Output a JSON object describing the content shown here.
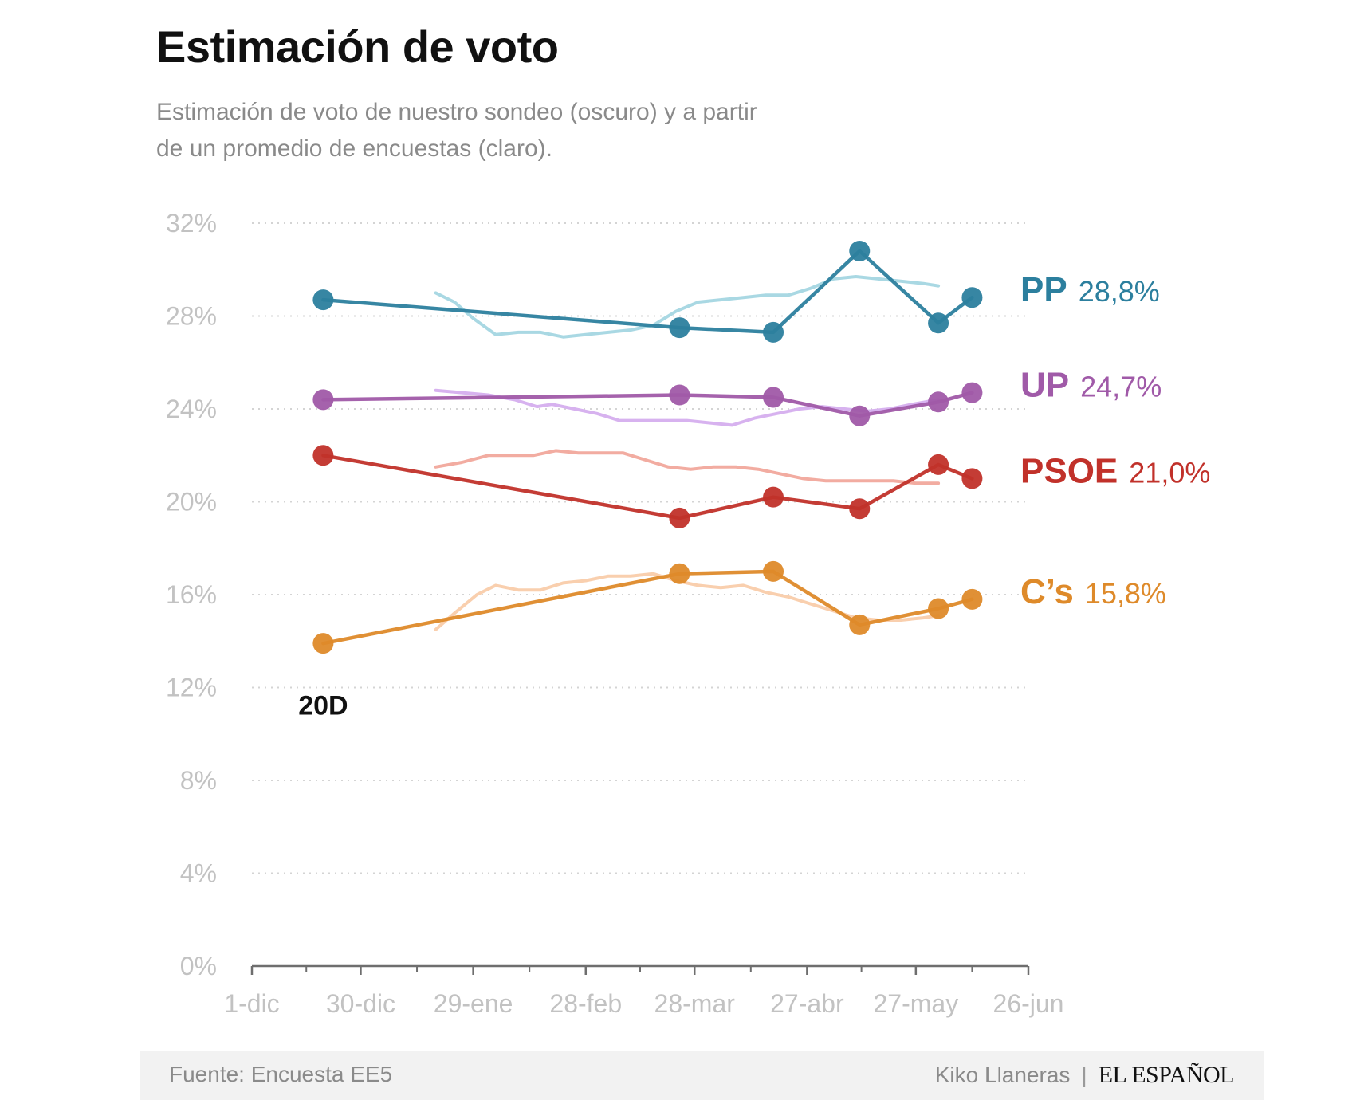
{
  "title": "Estimación de voto",
  "subtitle": "Estimación de voto de nuestro sondeo (oscuro) y a partir de un promedio de encuestas (claro).",
  "footer": {
    "source": "Fuente: Encuesta EE5",
    "author": "Kiko Llaneras",
    "separator": "|",
    "brand": "EL ESPAÑOL"
  },
  "chart_data": {
    "type": "line",
    "y_ticks": [
      "0%",
      "4%",
      "8%",
      "12%",
      "16%",
      "20%",
      "24%",
      "28%",
      "32%"
    ],
    "x_ticks": [
      "1-dic",
      "30-dic",
      "29-ene",
      "28-feb",
      "28-mar",
      "27-abr",
      "27-may",
      "26-jun"
    ],
    "x_tick_days": [
      0,
      29,
      59,
      89,
      118,
      148,
      177,
      207
    ],
    "ylim": [
      0,
      32
    ],
    "xlim_days": [
      0,
      207
    ],
    "grid": true,
    "annotation": {
      "text": "20D",
      "x_day": 19,
      "y": 11.1
    },
    "series": [
      {
        "name": "PP",
        "label_value": "28,8%",
        "color": "#2c7f9e",
        "light_color": "#a9d8e3",
        "survey": [
          [
            19,
            28.7
          ],
          [
            114,
            27.5
          ],
          [
            139,
            27.3
          ],
          [
            162,
            30.8
          ],
          [
            183,
            27.7
          ],
          [
            192,
            28.8
          ]
        ],
        "average": [
          [
            49,
            29.0
          ],
          [
            54,
            28.6
          ],
          [
            59,
            27.9
          ],
          [
            65,
            27.2
          ],
          [
            71,
            27.3
          ],
          [
            77,
            27.3
          ],
          [
            83,
            27.1
          ],
          [
            89,
            27.2
          ],
          [
            95,
            27.3
          ],
          [
            101,
            27.4
          ],
          [
            107,
            27.6
          ],
          [
            113,
            28.2
          ],
          [
            119,
            28.6
          ],
          [
            125,
            28.7
          ],
          [
            131,
            28.8
          ],
          [
            137,
            28.9
          ],
          [
            143,
            28.9
          ],
          [
            149,
            29.2
          ],
          [
            155,
            29.6
          ],
          [
            161,
            29.7
          ],
          [
            167,
            29.6
          ],
          [
            173,
            29.5
          ],
          [
            179,
            29.4
          ],
          [
            183,
            29.3
          ]
        ]
      },
      {
        "name": "UP",
        "label_value": "24,7%",
        "color": "#a05aa8",
        "light_color": "#d7b2ef",
        "survey": [
          [
            19,
            24.4
          ],
          [
            114,
            24.6
          ],
          [
            139,
            24.5
          ],
          [
            162,
            23.7
          ],
          [
            183,
            24.3
          ],
          [
            192,
            24.7
          ]
        ],
        "average": [
          [
            49,
            24.8
          ],
          [
            56,
            24.7
          ],
          [
            63,
            24.6
          ],
          [
            70,
            24.4
          ],
          [
            76,
            24.1
          ],
          [
            80,
            24.2
          ],
          [
            86,
            24.0
          ],
          [
            92,
            23.8
          ],
          [
            98,
            23.5
          ],
          [
            104,
            23.5
          ],
          [
            110,
            23.5
          ],
          [
            116,
            23.5
          ],
          [
            122,
            23.4
          ],
          [
            128,
            23.3
          ],
          [
            134,
            23.6
          ],
          [
            140,
            23.8
          ],
          [
            146,
            24.0
          ],
          [
            152,
            24.1
          ],
          [
            158,
            24.0
          ],
          [
            164,
            23.9
          ],
          [
            170,
            24.0
          ],
          [
            176,
            24.2
          ],
          [
            183,
            24.4
          ]
        ]
      },
      {
        "name": "PSOE",
        "label_value": "21,0%",
        "color": "#c1312a",
        "light_color": "#f2aca1",
        "survey": [
          [
            19,
            22.0
          ],
          [
            114,
            19.3
          ],
          [
            139,
            20.2
          ],
          [
            162,
            19.7
          ],
          [
            183,
            21.6
          ],
          [
            192,
            21.0
          ]
        ],
        "average": [
          [
            49,
            21.5
          ],
          [
            56,
            21.7
          ],
          [
            63,
            22.0
          ],
          [
            69,
            22.0
          ],
          [
            75,
            22.0
          ],
          [
            81,
            22.2
          ],
          [
            87,
            22.1
          ],
          [
            93,
            22.1
          ],
          [
            99,
            22.1
          ],
          [
            105,
            21.8
          ],
          [
            111,
            21.5
          ],
          [
            117,
            21.4
          ],
          [
            123,
            21.5
          ],
          [
            129,
            21.5
          ],
          [
            135,
            21.4
          ],
          [
            141,
            21.2
          ],
          [
            147,
            21.0
          ],
          [
            153,
            20.9
          ],
          [
            159,
            20.9
          ],
          [
            165,
            20.9
          ],
          [
            171,
            20.9
          ],
          [
            177,
            20.8
          ],
          [
            183,
            20.8
          ]
        ]
      },
      {
        "name": "C’s",
        "label_value": "15,8%",
        "color": "#de8a2a",
        "light_color": "#f9cfae",
        "survey": [
          [
            19,
            13.9
          ],
          [
            114,
            16.9
          ],
          [
            139,
            17.0
          ],
          [
            162,
            14.7
          ],
          [
            183,
            15.4
          ],
          [
            192,
            15.8
          ]
        ],
        "average": [
          [
            49,
            14.5
          ],
          [
            54,
            15.2
          ],
          [
            60,
            16.0
          ],
          [
            65,
            16.4
          ],
          [
            71,
            16.2
          ],
          [
            77,
            16.2
          ],
          [
            83,
            16.5
          ],
          [
            89,
            16.6
          ],
          [
            95,
            16.8
          ],
          [
            101,
            16.8
          ],
          [
            107,
            16.9
          ],
          [
            113,
            16.6
          ],
          [
            119,
            16.4
          ],
          [
            125,
            16.3
          ],
          [
            131,
            16.4
          ],
          [
            137,
            16.1
          ],
          [
            143,
            15.9
          ],
          [
            149,
            15.6
          ],
          [
            155,
            15.3
          ],
          [
            161,
            15.0
          ],
          [
            167,
            14.9
          ],
          [
            173,
            14.9
          ],
          [
            179,
            15.0
          ],
          [
            183,
            15.1
          ]
        ]
      }
    ]
  }
}
